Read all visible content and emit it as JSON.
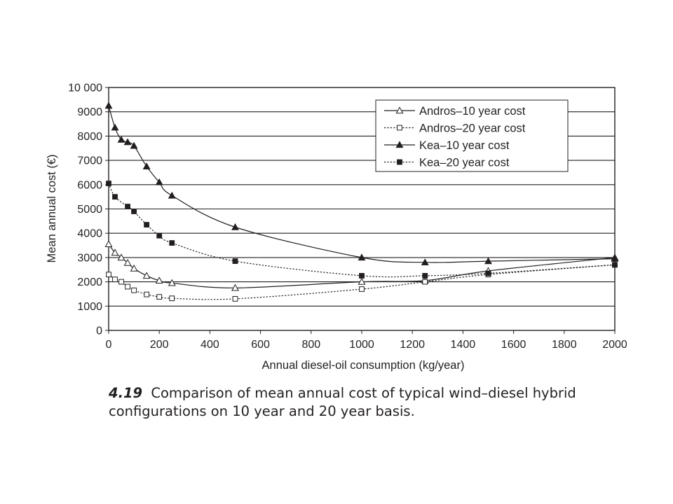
{
  "chart_data": {
    "type": "line",
    "title": "",
    "xlabel": "Annual diesel-oil consumption (kg/year)",
    "ylabel": "Mean annual cost (€)",
    "xlim": [
      0,
      2000
    ],
    "ylim": [
      0,
      10000
    ],
    "x_ticks": [
      0,
      200,
      400,
      600,
      800,
      1000,
      1200,
      1400,
      1600,
      1800,
      2000
    ],
    "y_ticks": [
      0,
      1000,
      2000,
      3000,
      4000,
      5000,
      6000,
      7000,
      8000,
      9000,
      10000
    ],
    "x_tick_labels": [
      "0",
      "200",
      "400",
      "600",
      "800",
      "1000",
      "1200",
      "1400",
      "1600",
      "1800",
      "2000"
    ],
    "y_tick_labels": [
      "0",
      "1000",
      "2000",
      "3000",
      "4000",
      "5000",
      "6000",
      "7000",
      "8000",
      "9000",
      "10 000"
    ],
    "grid": "horizontal",
    "legend_position": "top-right",
    "series": [
      {
        "name": "Andros–10 year cost",
        "marker": "open-triangle",
        "line": "solid",
        "x": [
          0,
          25,
          50,
          75,
          100,
          150,
          200,
          250,
          500,
          1000,
          1250,
          1500,
          2000
        ],
        "y": [
          3550,
          3200,
          3000,
          2780,
          2550,
          2250,
          2050,
          1950,
          1750,
          2000,
          2050,
          2450,
          3000
        ]
      },
      {
        "name": "Andros–20 year cost",
        "marker": "open-square",
        "line": "dotted",
        "x": [
          0,
          25,
          50,
          75,
          100,
          150,
          200,
          250,
          500,
          1000,
          1250,
          1500,
          2000
        ],
        "y": [
          2300,
          2100,
          2000,
          1800,
          1650,
          1480,
          1380,
          1320,
          1300,
          1700,
          2000,
          2300,
          2700
        ]
      },
      {
        "name": "Kea–10 year cost",
        "marker": "filled-triangle",
        "line": "solid",
        "x": [
          0,
          25,
          50,
          75,
          100,
          150,
          200,
          250,
          500,
          1000,
          1250,
          1500,
          2000
        ],
        "y": [
          9250,
          8350,
          7850,
          7750,
          7600,
          6750,
          6100,
          5550,
          4250,
          3000,
          2800,
          2850,
          2950
        ]
      },
      {
        "name": "Kea–20 year cost",
        "marker": "filled-square",
        "line": "dotted",
        "x": [
          0,
          25,
          75,
          100,
          150,
          200,
          250,
          500,
          1000,
          1250,
          1500,
          2000
        ],
        "y": [
          6050,
          5500,
          5100,
          4900,
          4350,
          3900,
          3600,
          2850,
          2250,
          2250,
          2350,
          2700
        ]
      }
    ]
  },
  "caption": {
    "number": "4.19",
    "text": "Comparison of mean annual cost of typical wind–diesel hybrid configurations on 10 year and 20 year basis."
  }
}
